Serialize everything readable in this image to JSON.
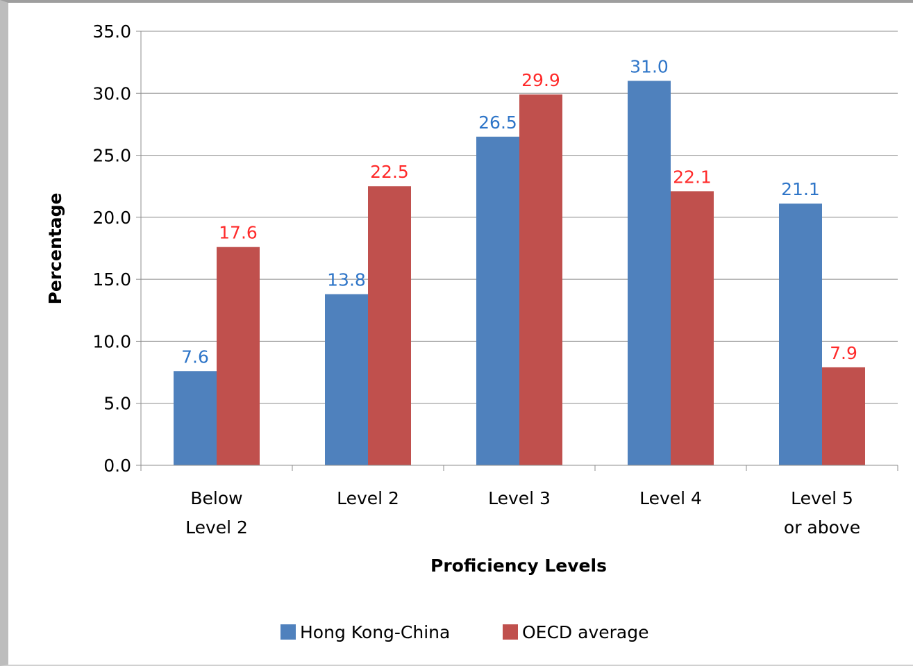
{
  "chart_data": {
    "type": "bar",
    "title": "",
    "xlabel": "Proficiency Levels",
    "ylabel": "Percentage",
    "ylim": [
      0,
      35
    ],
    "ytick_step": 5,
    "ytick_decimals": 1,
    "grid": true,
    "legend_position": "bottom",
    "categories": [
      [
        "Below",
        "Level 2"
      ],
      [
        "Level 2"
      ],
      [
        "Level 3"
      ],
      [
        "Level 4"
      ],
      [
        "Level 5",
        "or above"
      ]
    ],
    "series": [
      {
        "name": "Hong Kong-China",
        "color": "#4f81bd",
        "label_color": "#2e75c8",
        "values": [
          7.6,
          13.8,
          26.5,
          31.0,
          21.1
        ],
        "labels": [
          "7.6",
          "13.8",
          "26.5",
          "31.0",
          "21.1"
        ]
      },
      {
        "name": "OECD average",
        "color": "#c0504d",
        "label_color": "#ff2a2a",
        "values": [
          17.6,
          22.5,
          29.9,
          22.1,
          7.9
        ],
        "labels": [
          "17.6",
          "22.5",
          "29.9",
          "22.1",
          "7.9"
        ]
      }
    ]
  }
}
